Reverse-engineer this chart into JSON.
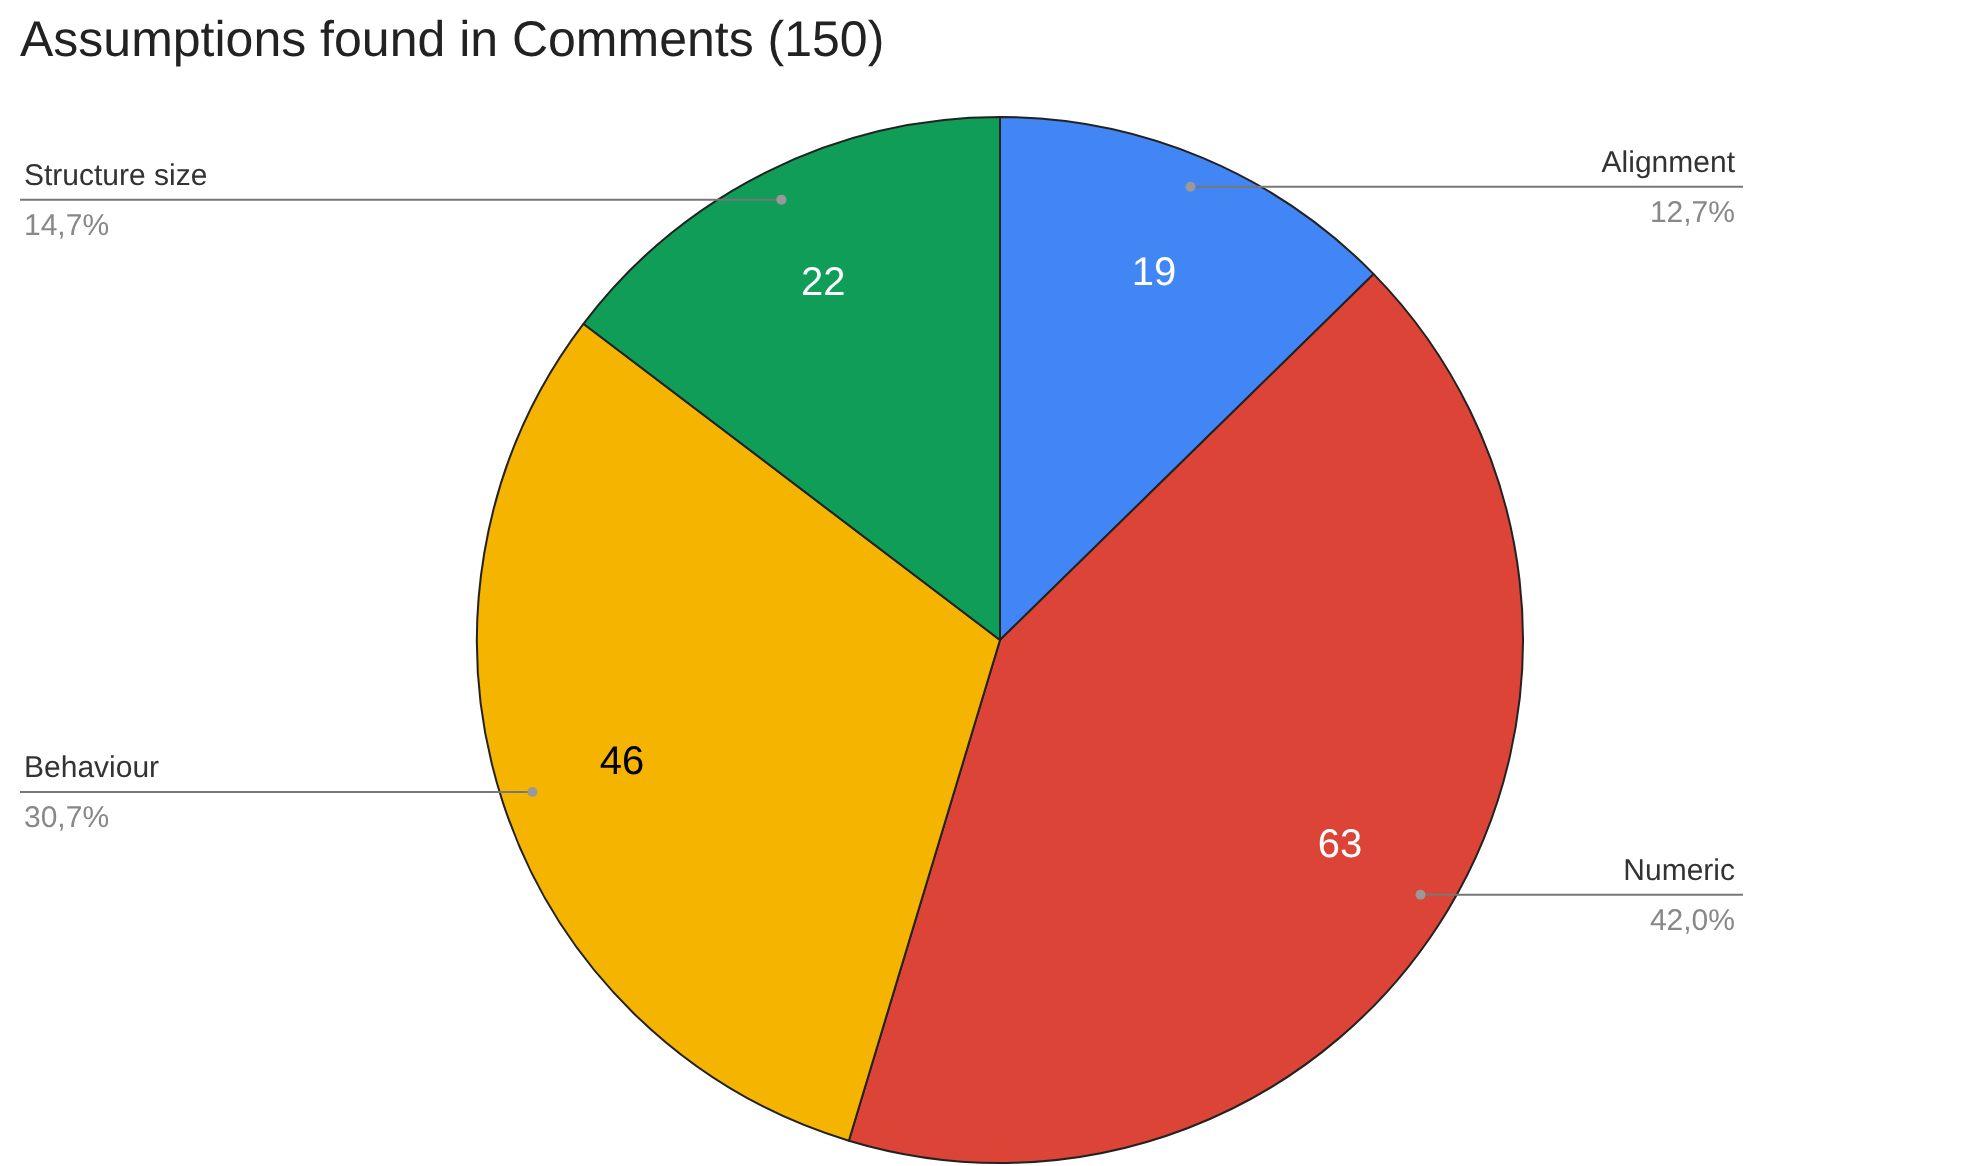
{
  "chart_data": {
    "type": "pie",
    "title": "Assumptions found in Comments (150)",
    "categories": [
      "Alignment",
      "Numeric",
      "Behaviour",
      "Structure size"
    ],
    "values": [
      19,
      63,
      46,
      22
    ],
    "colors": [
      "#4285f4",
      "#db4437",
      "#f4b400",
      "#0f9d58"
    ],
    "data_labels": true,
    "annotations": [
      "12,7%",
      "42,0%",
      "30,7%",
      "14,7%"
    ],
    "legend": false
  }
}
